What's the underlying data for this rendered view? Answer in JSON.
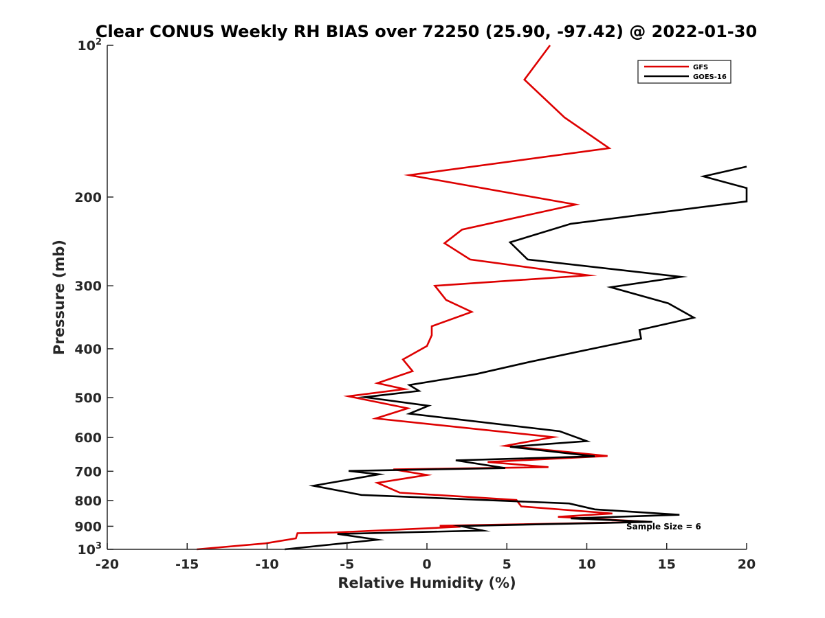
{
  "chart_data": {
    "type": "line",
    "title": "Clear CONUS Weekly RH BIAS over 72250 (25.90, -97.42) @ 2022-01-30",
    "xlabel": "Relative Humidity (%)",
    "ylabel": "Pressure (mb)",
    "xlim": [
      -20,
      20
    ],
    "ylim": [
      100,
      1000
    ],
    "y_scale": "log",
    "y_reversed": true,
    "x_ticks": [
      -20,
      -15,
      -10,
      -5,
      0,
      5,
      10,
      15,
      20
    ],
    "x_tick_labels": [
      "-20",
      "-15",
      "-10",
      "-5",
      "0",
      "5",
      "10",
      "15",
      "20"
    ],
    "y_ticks": [
      {
        "value": 100,
        "base": "10",
        "exp": "2"
      },
      {
        "value": 200,
        "label": "200"
      },
      {
        "value": 300,
        "label": "300"
      },
      {
        "value": 400,
        "label": "400"
      },
      {
        "value": 500,
        "label": "500"
      },
      {
        "value": 600,
        "label": "600"
      },
      {
        "value": 700,
        "label": "700"
      },
      {
        "value": 800,
        "label": "800"
      },
      {
        "value": 900,
        "label": "900"
      },
      {
        "value": 1000,
        "base": "10",
        "exp": "3"
      }
    ],
    "grid": false,
    "legend_position": "top-right",
    "annotation": "Sample Size = 6",
    "series": [
      {
        "name": "GFS",
        "color": "#dd0000",
        "points": [
          [
            7.7,
            100
          ],
          [
            6.1,
            117
          ],
          [
            8.6,
            139
          ],
          [
            11.4,
            160
          ],
          [
            -1.1,
            181
          ],
          [
            9.3,
            207
          ],
          [
            2.2,
            232
          ],
          [
            1.1,
            247
          ],
          [
            2.7,
            266
          ],
          [
            10.1,
            286
          ],
          [
            0.5,
            300
          ],
          [
            1.2,
            320
          ],
          [
            2.8,
            338
          ],
          [
            0.3,
            361
          ],
          [
            0.3,
            376
          ],
          [
            0.0,
            395
          ],
          [
            -1.5,
            420
          ],
          [
            -0.9,
            443
          ],
          [
            -3.1,
            468
          ],
          [
            -1.4,
            481
          ],
          [
            -4.9,
            497
          ],
          [
            -1.2,
            525
          ],
          [
            -3.2,
            550
          ],
          [
            7.9,
            599
          ],
          [
            4.9,
            623
          ],
          [
            11.3,
            653
          ],
          [
            3.8,
            671
          ],
          [
            7.6,
            687
          ],
          [
            -2.1,
            694
          ],
          [
            0.0,
            712
          ],
          [
            -3.1,
            738
          ],
          [
            -1.7,
            772
          ],
          [
            5.6,
            798
          ],
          [
            5.9,
            822
          ],
          [
            11.6,
            849
          ],
          [
            8.2,
            862
          ],
          [
            14.0,
            882
          ],
          [
            0.8,
            898
          ],
          [
            2.1,
            902
          ],
          [
            -5.8,
            926
          ],
          [
            -8.1,
            929
          ],
          [
            -8.2,
            951
          ],
          [
            -10.1,
            973
          ],
          [
            -14.4,
            1000
          ]
        ]
      },
      {
        "name": "GOES-16",
        "color": "#000000",
        "points": [
          [
            20.0,
            174
          ],
          [
            17.3,
            182
          ],
          [
            20.0,
            192
          ],
          [
            20.0,
            204
          ],
          [
            9.0,
            226
          ],
          [
            5.2,
            246
          ],
          [
            6.3,
            266
          ],
          [
            15.9,
            288
          ],
          [
            11.5,
            302
          ],
          [
            15.1,
            325
          ],
          [
            16.7,
            347
          ],
          [
            13.3,
            367
          ],
          [
            13.4,
            382
          ],
          [
            10.5,
            399
          ],
          [
            6.4,
            425
          ],
          [
            3.1,
            449
          ],
          [
            -1.1,
            472
          ],
          [
            -0.5,
            485
          ],
          [
            -3.9,
            499
          ],
          [
            0.1,
            519
          ],
          [
            -1.1,
            538
          ],
          [
            8.3,
            583
          ],
          [
            10.0,
            610
          ],
          [
            5.2,
            626
          ],
          [
            10.5,
            654
          ],
          [
            1.8,
            666
          ],
          [
            4.9,
            690
          ],
          [
            -4.9,
            699
          ],
          [
            -3.0,
            710
          ],
          [
            -7.1,
            748
          ],
          [
            -4.1,
            780
          ],
          [
            8.9,
            811
          ],
          [
            10.5,
            833
          ],
          [
            15.8,
            854
          ],
          [
            9.0,
            868
          ],
          [
            14.1,
            882
          ],
          [
            2.1,
            899
          ],
          [
            3.5,
            918
          ],
          [
            -5.6,
            932
          ],
          [
            -3.1,
            957
          ],
          [
            -8.9,
            1000
          ]
        ]
      }
    ]
  }
}
